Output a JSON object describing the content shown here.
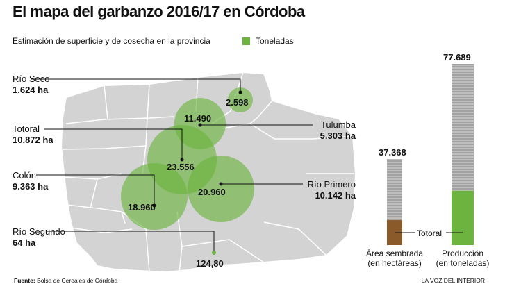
{
  "title": "El mapa del garbanzo 2016/17 en Córdoba",
  "subtitle": "Estimación de superficie y de cosecha en la provincia",
  "legend": {
    "label": "Toneladas",
    "color": "#6db33f"
  },
  "map": {
    "regions": [
      {
        "name": "Río Seco",
        "area": "1.624 ha",
        "tons": "2.598"
      },
      {
        "name": "Tulumba",
        "area": "5.303 ha",
        "tons": "11.490"
      },
      {
        "name": "Totoral",
        "area": "10.872 ha",
        "tons": "23.556"
      },
      {
        "name": "Colón",
        "area": "9.363 ha",
        "tons": "18.960"
      },
      {
        "name": "Río Primero",
        "area": "10.142 ha",
        "tons": "20.960"
      },
      {
        "name": "Río Segundo",
        "area": "64 ha",
        "tons": "124,80"
      }
    ]
  },
  "bars": {
    "area": {
      "total": "37.368",
      "caption_line1": "Área sembrada",
      "caption_line2": "(en hectáreas)",
      "totoral_share": 0.29
    },
    "production": {
      "total": "77.689",
      "caption_line1": "Producción",
      "caption_line2": "(en toneladas)",
      "totoral_share": 0.3
    },
    "totoral_label": "Totoral",
    "area_highlight_color": "#8b5a2b",
    "production_highlight_color": "#6db33f"
  },
  "footer": {
    "source_label": "Fuente:",
    "source_text": "Bolsa de Cereales de Córdoba",
    "credit": "LA VOZ DEL INTERIOR"
  }
}
